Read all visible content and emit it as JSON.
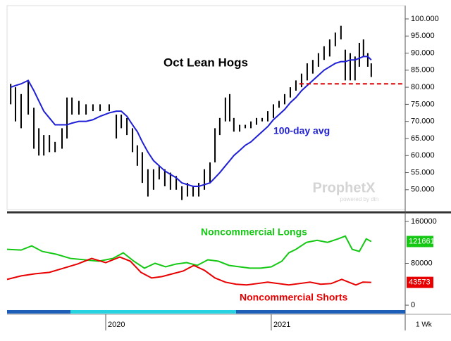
{
  "chart_data": [
    {
      "type": "hilo",
      "title": "Oct Lean Hogs",
      "watermark": "ProphetX",
      "watermark_sub": "powered by dtn",
      "bar_color": "#000000",
      "x": [
        2019.426,
        2019.455,
        2019.489,
        2019.532,
        2019.566,
        2019.596,
        2019.626,
        2019.66,
        2019.694,
        2019.736,
        2019.766,
        2019.796,
        2019.838,
        2019.881,
        2019.923,
        2019.966,
        2020.021,
        2020.064,
        2020.094,
        2020.128,
        2020.162,
        2020.191,
        2020.221,
        2020.255,
        2020.289,
        2020.323,
        2020.357,
        2020.391,
        2020.426,
        2020.46,
        2020.494,
        2020.528,
        2020.562,
        2020.596,
        2020.63,
        2020.66,
        2020.689,
        2020.723,
        2020.749,
        2020.774,
        2020.809,
        2020.843,
        2020.877,
        2020.911,
        2020.945,
        2020.979,
        2021.013,
        2021.047,
        2021.081,
        2021.115,
        2021.149,
        2021.183,
        2021.217,
        2021.251,
        2021.285,
        2021.319,
        2021.353,
        2021.387,
        2021.421,
        2021.447,
        2021.477,
        2021.506,
        2021.532,
        2021.557,
        2021.583,
        2021.604
      ],
      "high": [
        81,
        80,
        78,
        82,
        74,
        68,
        66,
        66,
        64,
        68,
        77,
        77,
        76,
        75,
        75,
        75,
        75,
        72,
        72,
        71,
        68,
        63,
        61,
        56,
        56,
        57,
        56,
        55,
        54,
        51,
        52,
        51,
        52,
        56,
        58,
        68,
        71,
        77,
        78,
        71,
        69,
        69,
        70,
        71,
        71,
        73,
        75,
        76,
        78,
        80,
        82,
        84,
        87,
        88,
        90,
        92,
        94,
        96,
        98,
        91,
        90,
        89,
        93,
        94,
        90,
        87
      ],
      "low": [
        75,
        70,
        68,
        72,
        62,
        60,
        60,
        61,
        61,
        62,
        65,
        72,
        72,
        72,
        73,
        73,
        73,
        65,
        68,
        66,
        61,
        57,
        52,
        48,
        50,
        53,
        51,
        50,
        50,
        47,
        48,
        48,
        48,
        50,
        52,
        58,
        66,
        70,
        70,
        67,
        67,
        68,
        68,
        69,
        70,
        70,
        71,
        74,
        75,
        77,
        79,
        80,
        82,
        84,
        86,
        88,
        89,
        92,
        94,
        82,
        82,
        82,
        86,
        89,
        86,
        83
      ],
      "series": [
        {
          "name": "100-day avg",
          "color": "#1f1fd6",
          "values": [
            80,
            80.5,
            81,
            82,
            79,
            76,
            73,
            71,
            69,
            69,
            69,
            69.5,
            70,
            70,
            70.5,
            71.5,
            72.5,
            73,
            73,
            71.5,
            69,
            67,
            64,
            61,
            58.5,
            57,
            55.5,
            54.5,
            53.5,
            52,
            51.5,
            51,
            51,
            51.5,
            52,
            53.5,
            55,
            57,
            58.5,
            60,
            61.5,
            63,
            64,
            65.5,
            67,
            68.5,
            70.5,
            72,
            73.5,
            75.5,
            77,
            79,
            80.5,
            82,
            83.5,
            85,
            86,
            87,
            87.5,
            87.5,
            88,
            88,
            88.5,
            89,
            89,
            88
          ]
        }
      ],
      "reference_line": {
        "value": 81,
        "from": 2021.17,
        "color": "#e00000"
      },
      "xlim": [
        2019.404,
        2021.809
      ],
      "ylim": [
        44.2,
        103.9
      ],
      "yticks": [
        {
          "value": 50,
          "label": "50.000"
        },
        {
          "value": 55,
          "label": "55.000"
        },
        {
          "value": 60,
          "label": "60.000"
        },
        {
          "value": 65,
          "label": "65.000"
        },
        {
          "value": 70,
          "label": "70.000"
        },
        {
          "value": 75,
          "label": "75.000"
        },
        {
          "value": 80,
          "label": "80.000"
        },
        {
          "value": 85,
          "label": "85.000"
        },
        {
          "value": 90,
          "label": "90.000"
        },
        {
          "value": 95,
          "label": "95.000"
        },
        {
          "value": 100,
          "label": "100.000"
        }
      ]
    },
    {
      "type": "line",
      "period": "1 Wk",
      "series": [
        {
          "name": "Noncommercial Longs",
          "color": "#14c814",
          "x": [
            2019.404,
            2019.489,
            2019.553,
            2019.617,
            2019.702,
            2019.787,
            2019.872,
            2019.957,
            2020.043,
            2020.106,
            2020.17,
            2020.234,
            2020.298,
            2020.362,
            2020.426,
            2020.489,
            2020.553,
            2020.617,
            2020.681,
            2020.745,
            2020.809,
            2020.872,
            2020.936,
            2021.0,
            2021.064,
            2021.106,
            2021.149,
            2021.213,
            2021.277,
            2021.34,
            2021.404,
            2021.447,
            2021.489,
            2021.532,
            2021.574,
            2021.604
          ],
          "values": [
            106700,
            105300,
            113300,
            102700,
            97300,
            89300,
            86700,
            84000,
            89300,
            100000,
            84000,
            70700,
            80000,
            73300,
            78700,
            81300,
            76000,
            86700,
            84000,
            76000,
            73300,
            70700,
            70700,
            73300,
            84000,
            100000,
            106700,
            120000,
            124000,
            120000,
            126700,
            132000,
            106700,
            102700,
            126700,
            121661
          ]
        },
        {
          "name": "Noncommercial Shorts",
          "color": "#e80000",
          "x": [
            2019.404,
            2019.489,
            2019.574,
            2019.66,
            2019.745,
            2019.83,
            2019.915,
            2020.0,
            2020.085,
            2020.149,
            2020.213,
            2020.277,
            2020.34,
            2020.404,
            2020.468,
            2020.532,
            2020.596,
            2020.66,
            2020.723,
            2020.787,
            2020.851,
            2020.915,
            2020.979,
            2021.043,
            2021.106,
            2021.17,
            2021.234,
            2021.298,
            2021.362,
            2021.426,
            2021.468,
            2021.511,
            2021.553,
            2021.604
          ],
          "values": [
            49300,
            56000,
            60000,
            62700,
            70700,
            78700,
            89300,
            81300,
            92000,
            84000,
            62700,
            52000,
            54700,
            60000,
            65300,
            76000,
            66700,
            52000,
            44000,
            40000,
            38700,
            41300,
            44000,
            41300,
            38700,
            41300,
            44000,
            40000,
            41300,
            49300,
            44000,
            38700,
            44000,
            43573
          ]
        }
      ],
      "last_value_flag": true,
      "xlim": [
        2019.404,
        2021.809
      ],
      "ylim": [
        -9300,
        169300
      ],
      "xticks": [
        2020,
        2021
      ],
      "yticks": [
        0,
        80000,
        160000
      ]
    }
  ]
}
